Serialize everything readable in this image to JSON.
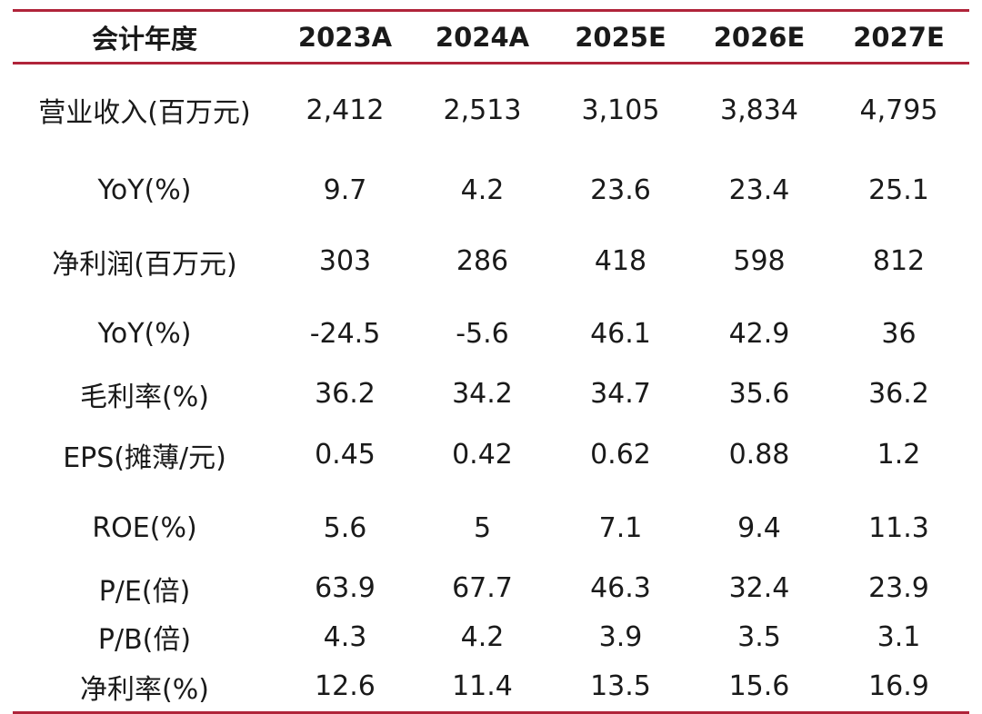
{
  "table": {
    "headers": [
      "会计年度",
      "2023A",
      "2024A",
      "2025E",
      "2026E",
      "2027E"
    ],
    "rows": [
      {
        "label": "营业收入(百万元)",
        "values": [
          "2,412",
          "2,513",
          "3,105",
          "3,834",
          "4,795"
        ]
      },
      {
        "label": "YoY(%)",
        "values": [
          "9.7",
          "4.2",
          "23.6",
          "23.4",
          "25.1"
        ]
      },
      {
        "label": "净利润(百万元)",
        "values": [
          "303",
          "286",
          "418",
          "598",
          "812"
        ]
      },
      {
        "label": "YoY(%)",
        "values": [
          "-24.5",
          "-5.6",
          "46.1",
          "42.9",
          "36"
        ]
      },
      {
        "label": "毛利率(%)",
        "values": [
          "36.2",
          "34.2",
          "34.7",
          "35.6",
          "36.2"
        ]
      },
      {
        "label": "EPS(摊薄/元)",
        "values": [
          "0.45",
          "0.42",
          "0.62",
          "0.88",
          "1.2"
        ]
      },
      {
        "label": "ROE(%)",
        "values": [
          "5.6",
          "5",
          "7.1",
          "9.4",
          "11.3"
        ]
      },
      {
        "label": "P/E(倍)",
        "values": [
          "63.9",
          "67.7",
          "46.3",
          "32.4",
          "23.9"
        ]
      },
      {
        "label": "P/B(倍)",
        "values": [
          "4.3",
          "4.2",
          "3.9",
          "3.5",
          "3.1"
        ]
      },
      {
        "label": "净利率(%)",
        "values": [
          "12.6",
          "11.4",
          "13.5",
          "15.6",
          "16.9"
        ]
      }
    ]
  },
  "colors": {
    "rule": "#b0243a",
    "text": "#1a1a1a"
  }
}
